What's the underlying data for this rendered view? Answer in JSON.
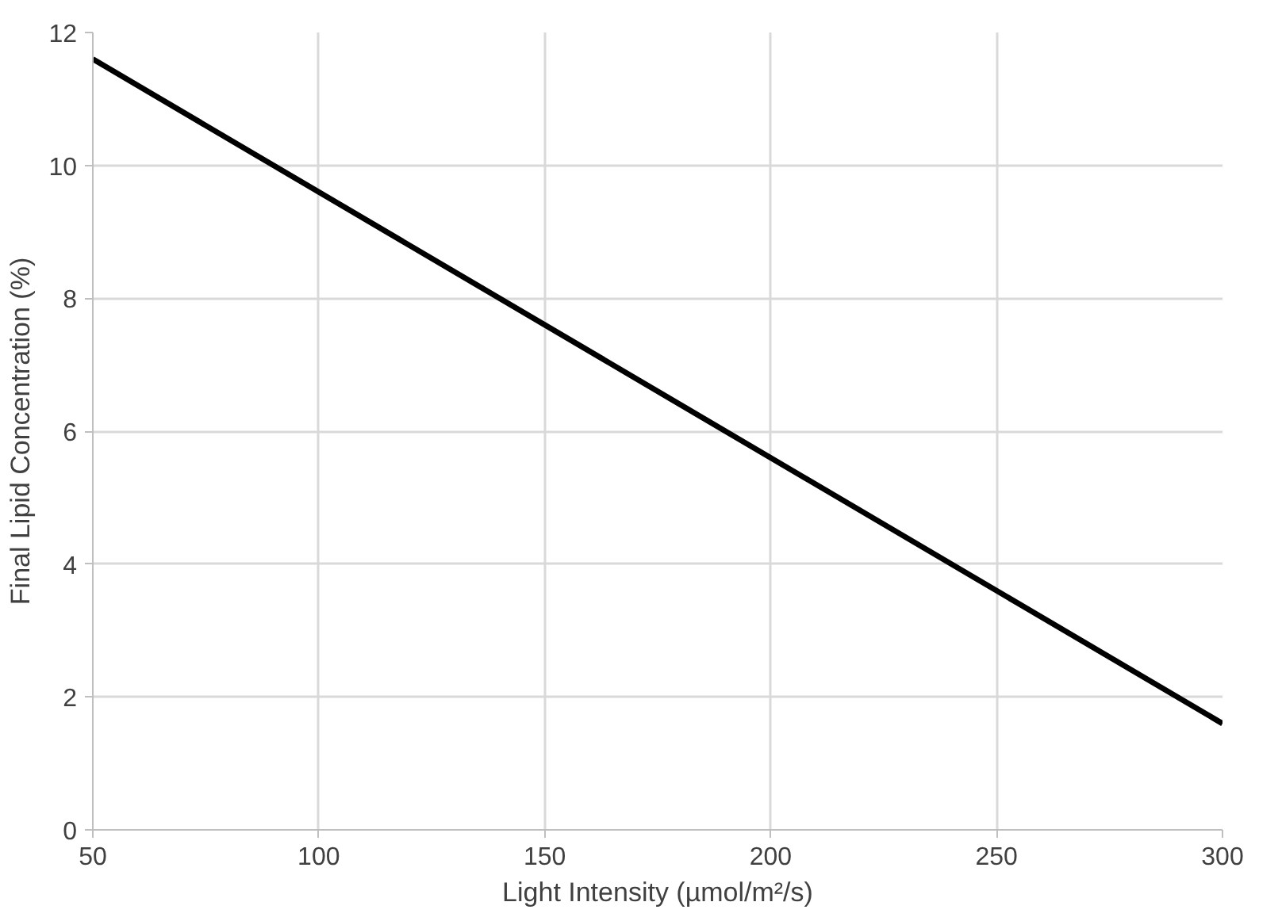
{
  "chart_data": {
    "type": "line",
    "xlabel": "Light Intensity (µmol/m²/s)",
    "ylabel": "Final Lipid Concentration (%)",
    "x": [
      50,
      300
    ],
    "series": [
      {
        "color": "#000000",
        "values": [
          11.6,
          1.6
        ]
      }
    ],
    "xlim": [
      50,
      300
    ],
    "ylim": [
      0,
      12
    ],
    "xticks": [
      50,
      100,
      150,
      200,
      250,
      300
    ],
    "yticks": [
      0,
      2,
      4,
      6,
      8,
      10,
      12
    ],
    "grid": true,
    "marker": "none",
    "line_style": "solid"
  }
}
